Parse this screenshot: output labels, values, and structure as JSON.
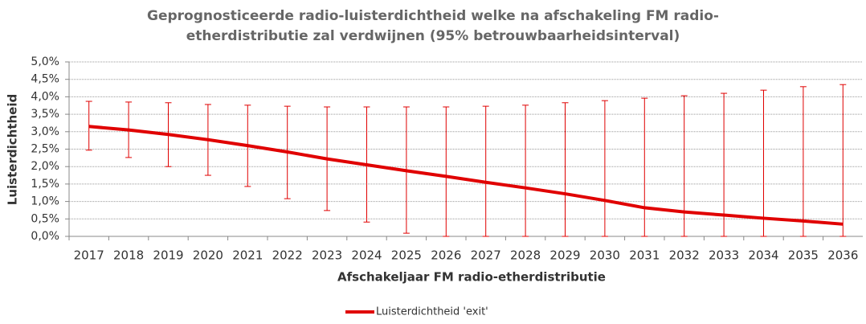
{
  "chart_data": {
    "type": "line",
    "title": [
      "Geprognosticeerde radio-luisterdichtheid welke na afschakeling FM radio-",
      "etherdistributie zal verdwijnen (95% betrouwbaarheidsinterval)"
    ],
    "xlabel": "Afschakeljaar FM radio-etherdistributie",
    "ylabel": "Luisterdichtheid",
    "categories": [
      "2017",
      "2018",
      "2019",
      "2020",
      "2021",
      "2022",
      "2023",
      "2024",
      "2025",
      "2026",
      "2027",
      "2028",
      "2029",
      "2030",
      "2031",
      "2032",
      "2033",
      "2034",
      "2035",
      "2036"
    ],
    "series": [
      {
        "name": "Luisterdichtheid 'exit'",
        "color": "#e00000",
        "values": [
          3.15,
          3.05,
          2.92,
          2.77,
          2.6,
          2.42,
          2.22,
          2.05,
          1.88,
          1.72,
          1.55,
          1.39,
          1.22,
          1.03,
          0.82,
          0.7,
          0.61,
          0.52,
          0.44,
          0.35
        ],
        "upper": [
          3.87,
          3.85,
          3.83,
          3.78,
          3.76,
          3.73,
          3.71,
          3.71,
          3.71,
          3.71,
          3.73,
          3.76,
          3.83,
          3.89,
          3.96,
          4.03,
          4.1,
          4.19,
          4.29,
          4.35
        ],
        "lower": [
          2.47,
          2.26,
          2.0,
          1.75,
          1.43,
          1.08,
          0.74,
          0.41,
          0.09,
          0,
          0,
          0,
          0,
          0,
          0,
          0,
          0,
          0,
          0,
          0
        ]
      }
    ],
    "ylim": [
      0,
      5
    ],
    "yticks": [
      {
        "value": 0,
        "label": "0,0%"
      },
      {
        "value": 0.5,
        "label": "0,5%"
      },
      {
        "value": 1,
        "label": "1,0%"
      },
      {
        "value": 1.5,
        "label": "1,5%"
      },
      {
        "value": 2,
        "label": "2,0%"
      },
      {
        "value": 2.5,
        "label": "2,5%"
      },
      {
        "value": 3,
        "label": "3,0%"
      },
      {
        "value": 3.5,
        "label": "3,5%"
      },
      {
        "value": 4,
        "label": "4,0%"
      },
      {
        "value": 4.5,
        "label": "4,5%"
      },
      {
        "value": 5,
        "label": "5,0%"
      }
    ],
    "grid": true,
    "legend": "bottom"
  }
}
